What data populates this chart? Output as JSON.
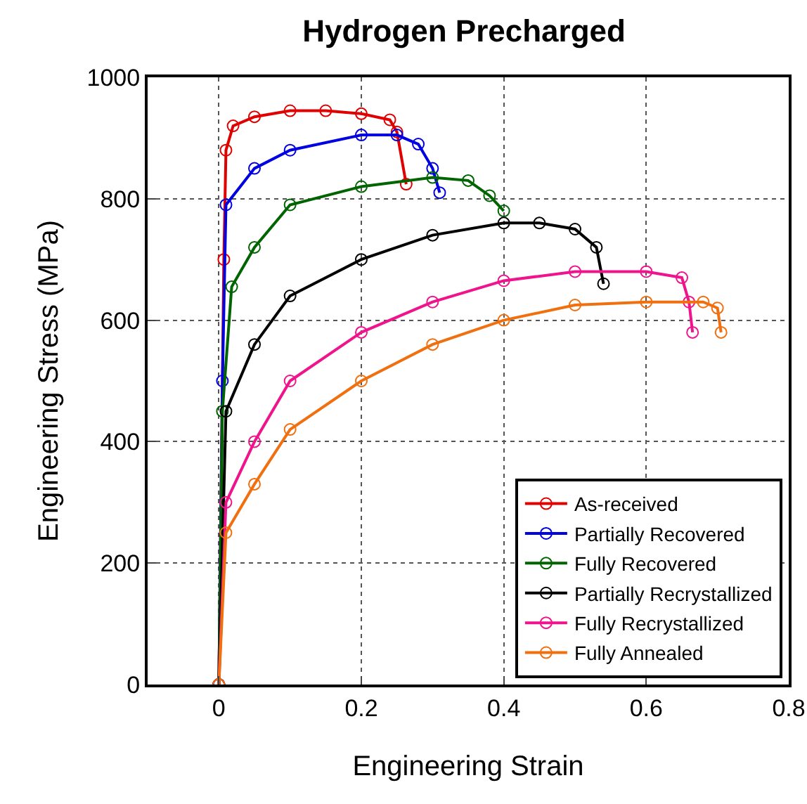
{
  "chart_data": {
    "type": "line",
    "title": "Hydrogen Precharged",
    "xlabel": "Engineering Strain",
    "ylabel": "Engineering Stress (MPa)",
    "xlim": [
      -0.1,
      0.8
    ],
    "xticks": [
      0,
      0.2,
      0.4,
      0.6,
      0.8
    ],
    "ylim": [
      0,
      1000
    ],
    "yticks": [
      0,
      200,
      400,
      600,
      800,
      1000
    ],
    "grid": true,
    "legend": "bottom right",
    "marker": "circle",
    "line_style": "solid",
    "series": [
      {
        "name": "As-received",
        "color": "#e00000",
        "x": [
          0,
          0.007,
          0.01,
          0.02,
          0.05,
          0.1,
          0.15,
          0.2,
          0.24,
          0.25,
          0.263
        ],
        "values": [
          0,
          700,
          880,
          920,
          935,
          945,
          945,
          940,
          930,
          910,
          824
        ]
      },
      {
        "name": "Partially Recovered",
        "color": "#0000e0",
        "x": [
          0,
          0.005,
          0.01,
          0.05,
          0.1,
          0.2,
          0.25,
          0.28,
          0.3,
          0.31
        ],
        "values": [
          0,
          500,
          790,
          850,
          880,
          905,
          905,
          890,
          850,
          810
        ]
      },
      {
        "name": "Fully Recovered",
        "color": "#006400",
        "x": [
          0,
          0.005,
          0.018,
          0.05,
          0.1,
          0.2,
          0.3,
          0.35,
          0.38,
          0.4
        ],
        "values": [
          0,
          450,
          655,
          720,
          790,
          820,
          835,
          830,
          805,
          780
        ]
      },
      {
        "name": "Partially Recrystallized",
        "color": "#000000",
        "x": [
          0,
          0.01,
          0.05,
          0.1,
          0.2,
          0.3,
          0.4,
          0.45,
          0.5,
          0.53,
          0.54
        ],
        "values": [
          0,
          450,
          560,
          640,
          700,
          740,
          760,
          760,
          750,
          720,
          660
        ]
      },
      {
        "name": "Fully Recrystallized",
        "color": "#f0148c",
        "x": [
          0,
          0.01,
          0.05,
          0.1,
          0.2,
          0.3,
          0.4,
          0.5,
          0.6,
          0.65,
          0.66,
          0.665
        ],
        "values": [
          0,
          300,
          400,
          500,
          580,
          630,
          665,
          680,
          680,
          670,
          630,
          580
        ]
      },
      {
        "name": "Fully Annealed",
        "color": "#f07010",
        "x": [
          0,
          0.01,
          0.05,
          0.1,
          0.2,
          0.3,
          0.4,
          0.5,
          0.6,
          0.68,
          0.7,
          0.705
        ],
        "values": [
          0,
          250,
          330,
          420,
          500,
          560,
          600,
          625,
          630,
          630,
          620,
          580
        ]
      }
    ]
  }
}
